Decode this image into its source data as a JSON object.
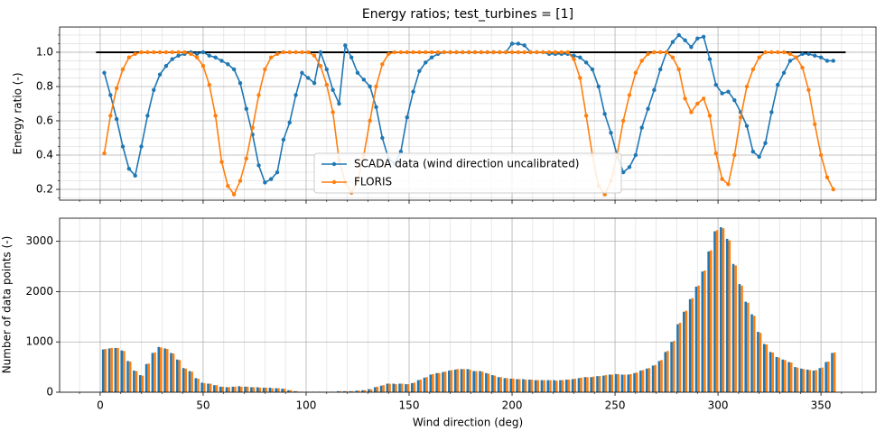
{
  "chart_data": [
    {
      "type": "line",
      "title": "Energy ratios; test_turbines = [1]",
      "ylabel": "Energy ratio (-)",
      "x": [
        2,
        5,
        8,
        11,
        14,
        17,
        20,
        23,
        26,
        29,
        32,
        35,
        38,
        41,
        44,
        47,
        50,
        53,
        56,
        59,
        62,
        65,
        68,
        71,
        74,
        77,
        80,
        83,
        86,
        89,
        92,
        95,
        98,
        101,
        104,
        107,
        110,
        113,
        116,
        119,
        122,
        125,
        128,
        131,
        134,
        137,
        140,
        143,
        146,
        149,
        152,
        155,
        158,
        161,
        164,
        167,
        170,
        173,
        176,
        179,
        182,
        185,
        188,
        191,
        194,
        197,
        200,
        203,
        206,
        209,
        212,
        215,
        218,
        221,
        224,
        227,
        230,
        233,
        236,
        239,
        242,
        245,
        248,
        251,
        254,
        257,
        260,
        263,
        266,
        269,
        272,
        275,
        278,
        281,
        284,
        287,
        290,
        293,
        296,
        299,
        302,
        305,
        308,
        311,
        314,
        317,
        320,
        323,
        326,
        329,
        332,
        335,
        338,
        341,
        344,
        347,
        350,
        353,
        356
      ],
      "series": [
        {
          "name": "SCADA data (wind direction uncalibrated)",
          "color": "#1f77b4",
          "values": [
            0.88,
            0.75,
            0.61,
            0.45,
            0.32,
            0.28,
            0.45,
            0.63,
            0.78,
            0.87,
            0.92,
            0.96,
            0.98,
            0.99,
            1.0,
            0.99,
            1.0,
            0.98,
            0.97,
            0.95,
            0.93,
            0.9,
            0.82,
            0.67,
            0.52,
            0.34,
            0.24,
            0.26,
            0.3,
            0.49,
            0.59,
            0.75,
            0.88,
            0.85,
            0.82,
            1.0,
            0.9,
            0.78,
            0.7,
            1.04,
            0.97,
            0.88,
            0.84,
            0.8,
            0.68,
            0.5,
            0.38,
            0.35,
            0.42,
            0.62,
            0.77,
            0.89,
            0.94,
            0.97,
            0.99,
            1.0,
            1.0,
            1.0,
            1.0,
            1.0,
            1.0,
            1.0,
            1.0,
            1.0,
            1.0,
            1.0,
            1.05,
            1.05,
            1.04,
            1.0,
            1.0,
            1.0,
            0.99,
            0.99,
            0.99,
            0.99,
            0.98,
            0.97,
            0.94,
            0.9,
            0.8,
            0.64,
            0.53,
            0.4,
            0.3,
            0.33,
            0.4,
            0.56,
            0.67,
            0.78,
            0.9,
            1.0,
            1.06,
            1.1,
            1.07,
            1.03,
            1.08,
            1.09,
            0.96,
            0.81,
            0.76,
            0.77,
            0.72,
            0.65,
            0.57,
            0.42,
            0.39,
            0.47,
            0.65,
            0.81,
            0.88,
            0.95,
            0.97,
            0.99,
            0.99,
            0.98,
            0.97,
            0.95,
            0.95
          ]
        },
        {
          "name": "FLORIS",
          "color": "#ff7f0e",
          "values": [
            0.41,
            0.63,
            0.79,
            0.9,
            0.97,
            0.99,
            1.0,
            1.0,
            1.0,
            1.0,
            1.0,
            1.0,
            1.0,
            1.0,
            0.99,
            0.97,
            0.92,
            0.81,
            0.63,
            0.36,
            0.22,
            0.17,
            0.25,
            0.38,
            0.56,
            0.75,
            0.9,
            0.97,
            0.99,
            1.0,
            1.0,
            1.0,
            1.0,
            1.0,
            0.98,
            0.92,
            0.81,
            0.65,
            0.37,
            0.24,
            0.18,
            0.25,
            0.4,
            0.6,
            0.8,
            0.93,
            0.99,
            1.0,
            1.0,
            1.0,
            1.0,
            1.0,
            1.0,
            1.0,
            1.0,
            1.0,
            1.0,
            1.0,
            1.0,
            1.0,
            1.0,
            1.0,
            1.0,
            1.0,
            1.0,
            1.0,
            1.0,
            1.0,
            1.0,
            1.0,
            1.0,
            1.0,
            1.0,
            1.0,
            1.0,
            1.0,
            0.96,
            0.85,
            0.63,
            0.4,
            0.22,
            0.17,
            0.25,
            0.4,
            0.6,
            0.75,
            0.88,
            0.95,
            0.99,
            1.0,
            1.0,
            1.0,
            0.97,
            0.9,
            0.73,
            0.65,
            0.7,
            0.73,
            0.63,
            0.41,
            0.26,
            0.23,
            0.4,
            0.62,
            0.8,
            0.9,
            0.97,
            1.0,
            1.0,
            1.0,
            1.0,
            0.99,
            0.97,
            0.91,
            0.78,
            0.58,
            0.4,
            0.27,
            0.2
          ]
        }
      ],
      "hline": {
        "value": 1,
        "xmin": -2,
        "xmax": 362,
        "color": "#000000"
      },
      "xlim": [
        -19.7,
        376.7
      ],
      "ylim": [
        0.137,
        1.147
      ],
      "xticks": [
        0,
        50,
        100,
        150,
        200,
        250,
        300,
        350
      ],
      "xminorticks": [
        -10,
        10,
        20,
        30,
        40,
        60,
        70,
        80,
        90,
        110,
        120,
        130,
        140,
        160,
        170,
        180,
        190,
        210,
        220,
        230,
        240,
        260,
        270,
        280,
        290,
        310,
        320,
        330,
        340,
        360,
        370
      ],
      "yticks": [
        0.2,
        0.4,
        0.6,
        0.8,
        {
          "value": 1,
          "label": "1.0"
        }
      ],
      "yminorticks": [
        0.15,
        0.25,
        0.3,
        0.35,
        0.45,
        0.5,
        0.55,
        0.65,
        0.7,
        0.75,
        0.85,
        0.9,
        0.95,
        1.05,
        1.1
      ],
      "show_x_tick_labels": false,
      "grid": true,
      "legend": "lower center"
    },
    {
      "type": "bar",
      "xlabel": "Wind direction (deg)",
      "ylabel": "Number of data points (-)",
      "x": [
        2,
        5,
        8,
        11,
        14,
        17,
        20,
        23,
        26,
        29,
        32,
        35,
        38,
        41,
        44,
        47,
        50,
        53,
        56,
        59,
        62,
        65,
        68,
        71,
        74,
        77,
        80,
        83,
        86,
        89,
        92,
        95,
        98,
        101,
        104,
        107,
        110,
        113,
        116,
        119,
        122,
        125,
        128,
        131,
        134,
        137,
        140,
        143,
        146,
        149,
        152,
        155,
        158,
        161,
        164,
        167,
        170,
        173,
        176,
        179,
        182,
        185,
        188,
        191,
        194,
        197,
        200,
        203,
        206,
        209,
        212,
        215,
        218,
        221,
        224,
        227,
        230,
        233,
        236,
        239,
        242,
        245,
        248,
        251,
        254,
        257,
        260,
        263,
        266,
        269,
        272,
        275,
        278,
        281,
        284,
        287,
        290,
        293,
        296,
        299,
        302,
        305,
        308,
        311,
        314,
        317,
        320,
        323,
        326,
        329,
        332,
        335,
        338,
        341,
        344,
        347,
        350,
        353,
        356
      ],
      "series": [
        {
          "color": "#1f77b4",
          "values": [
            850,
            870,
            880,
            830,
            620,
            430,
            340,
            560,
            780,
            900,
            870,
            780,
            650,
            480,
            420,
            280,
            190,
            170,
            140,
            110,
            100,
            110,
            120,
            110,
            100,
            100,
            90,
            90,
            80,
            70,
            40,
            20,
            10,
            10,
            10,
            10,
            10,
            10,
            20,
            20,
            20,
            30,
            40,
            60,
            100,
            130,
            170,
            170,
            170,
            160,
            180,
            240,
            290,
            350,
            380,
            400,
            430,
            450,
            460,
            460,
            420,
            420,
            380,
            340,
            300,
            280,
            270,
            260,
            260,
            250,
            240,
            240,
            240,
            240,
            240,
            250,
            260,
            280,
            300,
            300,
            320,
            330,
            350,
            360,
            350,
            350,
            380,
            430,
            470,
            530,
            620,
            800,
            1000,
            1350,
            1600,
            1850,
            2100,
            2400,
            2800,
            3200,
            3280,
            3050,
            2550,
            2150,
            1800,
            1550,
            1200,
            960,
            800,
            700,
            650,
            600,
            500,
            470,
            450,
            430,
            480,
            600,
            780
          ]
        },
        {
          "color": "#ff7f0e",
          "values": [
            860,
            880,
            880,
            820,
            610,
            420,
            330,
            570,
            790,
            890,
            860,
            770,
            640,
            470,
            410,
            270,
            180,
            170,
            140,
            110,
            100,
            110,
            110,
            110,
            100,
            90,
            90,
            80,
            80,
            70,
            40,
            20,
            10,
            10,
            10,
            10,
            10,
            10,
            20,
            20,
            20,
            30,
            40,
            60,
            110,
            140,
            170,
            160,
            170,
            160,
            190,
            250,
            300,
            360,
            380,
            410,
            440,
            460,
            460,
            450,
            420,
            410,
            370,
            330,
            300,
            280,
            270,
            260,
            250,
            250,
            240,
            240,
            240,
            230,
            240,
            250,
            270,
            290,
            300,
            310,
            320,
            340,
            350,
            360,
            350,
            360,
            390,
            440,
            480,
            540,
            640,
            820,
            1020,
            1380,
            1620,
            1870,
            2120,
            2420,
            2820,
            3220,
            3260,
            3020,
            2520,
            2120,
            1780,
            1520,
            1180,
            950,
            790,
            690,
            640,
            590,
            490,
            460,
            440,
            440,
            490,
            610,
            790
          ]
        }
      ],
      "xlim": [
        -19.7,
        376.7
      ],
      "ylim": [
        0,
        3460
      ],
      "xticks": [
        0,
        50,
        100,
        150,
        200,
        250,
        300,
        350
      ],
      "xminorticks": [
        -10,
        10,
        20,
        30,
        40,
        60,
        70,
        80,
        90,
        110,
        120,
        130,
        140,
        160,
        170,
        180,
        190,
        210,
        220,
        230,
        240,
        260,
        270,
        280,
        290,
        310,
        320,
        330,
        340,
        360,
        370
      ],
      "yticks": [
        0,
        1000,
        2000,
        3000
      ],
      "show_x_tick_labels": true,
      "grid": true
    }
  ]
}
